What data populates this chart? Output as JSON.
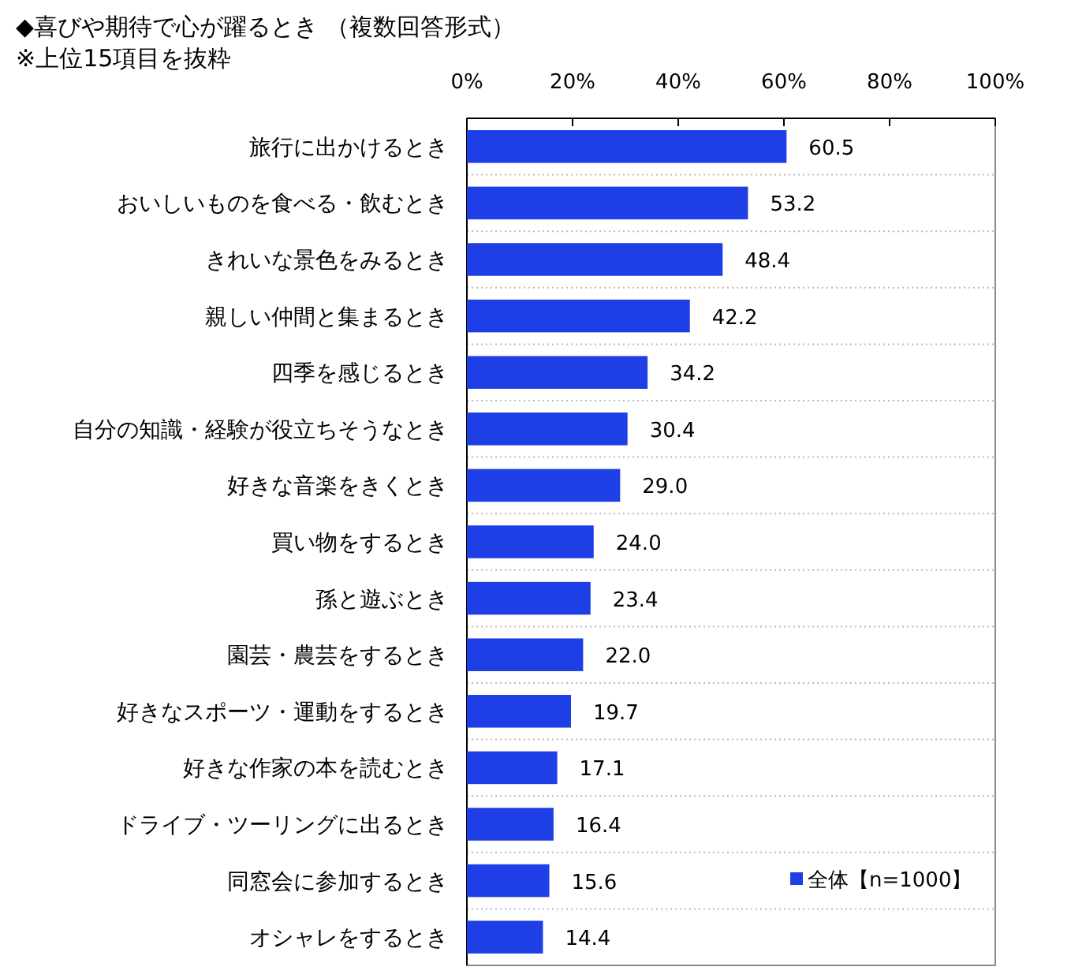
{
  "chart_data": {
    "type": "bar",
    "orientation": "horizontal",
    "title": "◆喜びや期待で心が躍るとき （複数回答形式）",
    "subtitle": "※上位15項目を抜粋",
    "categories": [
      "旅行に出かけるとき",
      "おいしいものを食べる・飲むとき",
      "きれいな景色をみるとき",
      "親しい仲間と集まるとき",
      "四季を感じるとき",
      "自分の知識・経験が役立ちそうなとき",
      "好きな音楽をきくとき",
      "買い物をするとき",
      "孫と遊ぶとき",
      "園芸・農芸をするとき",
      "好きなスポーツ・運動をするとき",
      "好きな作家の本を読むとき",
      "ドライブ・ツーリングに出るとき",
      "同窓会に参加するとき",
      "オシャレをするとき"
    ],
    "series": [
      {
        "name": "全体【n=1000】",
        "color": "#1f3fe6",
        "values": [
          60.5,
          53.2,
          48.4,
          42.2,
          34.2,
          30.4,
          29.0,
          24.0,
          23.4,
          22.0,
          19.7,
          17.1,
          16.4,
          15.6,
          14.4
        ],
        "value_labels": [
          "60.5",
          "53.2",
          "48.4",
          "42.2",
          "34.2",
          "30.4",
          "29.0",
          "24.0",
          "23.4",
          "22.0",
          "19.7",
          "17.1",
          "16.4",
          "15.6",
          "14.4"
        ]
      }
    ],
    "xlim": [
      0,
      100
    ],
    "xticks": [
      {
        "value": 0,
        "label": "0%"
      },
      {
        "value": 20,
        "label": "20%"
      },
      {
        "value": 40,
        "label": "40%"
      },
      {
        "value": 60,
        "label": "60%"
      },
      {
        "value": 80,
        "label": "80%"
      },
      {
        "value": 100,
        "label": "100%"
      }
    ],
    "grid": "y",
    "legend": "bottom right"
  }
}
